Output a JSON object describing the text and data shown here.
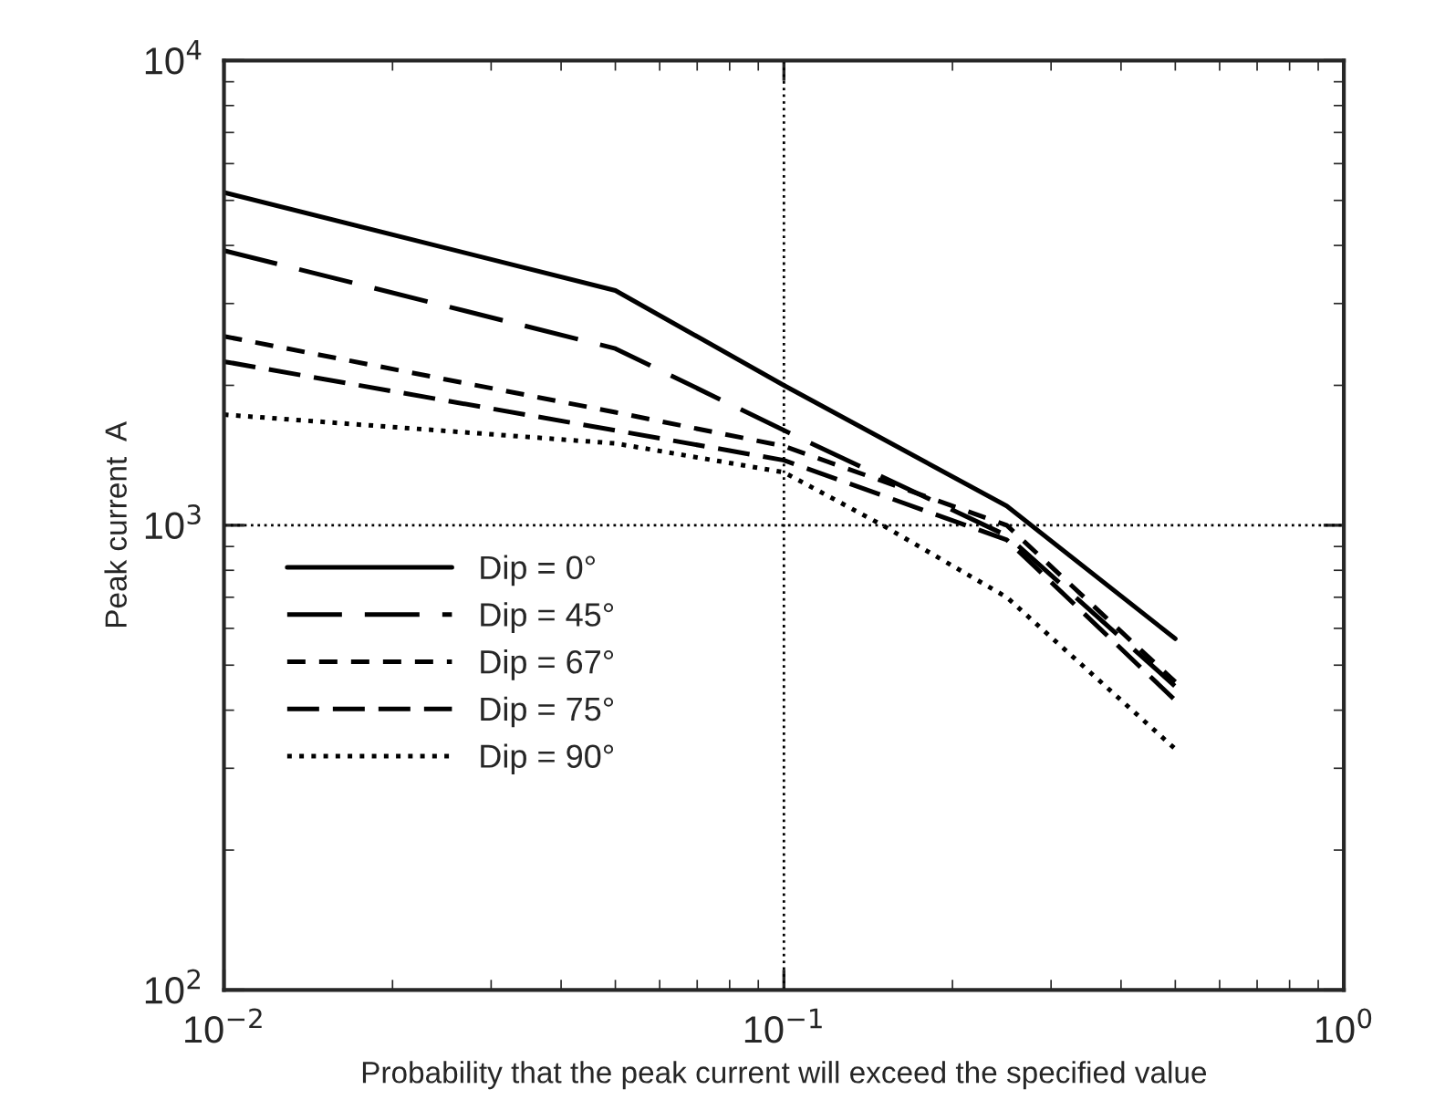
{
  "chart_data": {
    "type": "line",
    "xlabel": "Probability that the peak current will exceed the specified value",
    "ylabel": "Peak current  A",
    "log": "xy",
    "xlim": [
      0.01,
      1
    ],
    "ylim": [
      100,
      10000
    ],
    "xticks": [
      {
        "value": 0.01,
        "label": "10$^{−2}$"
      },
      {
        "value": 0.1,
        "label": "10$^{−1}$"
      },
      {
        "value": 1,
        "label": "10$^{0}$"
      }
    ],
    "yticks": [
      {
        "value": 100,
        "label": "10$^{2}$"
      },
      {
        "value": 1000,
        "label": "10$^{3}$"
      },
      {
        "value": 10000,
        "label": "10$^{4}$"
      }
    ],
    "grid": false,
    "legend": "bottom left",
    "marker": "none",
    "ref_lines": [
      {
        "axis": "x",
        "value": 0.1,
        "line_style": "dotted",
        "color": "#000000"
      },
      {
        "axis": "y",
        "value": 1000,
        "line_style": "dotted",
        "color": "#000000"
      }
    ],
    "series": [
      {
        "name": "Dip = 0°",
        "color": "#000000",
        "line_style": "solid",
        "x": [
          0.01,
          0.05,
          0.1,
          0.25,
          0.5
        ],
        "values": [
          5200,
          3200,
          2000,
          1100,
          570
        ]
      },
      {
        "name": "Dip = 45°",
        "color": "#000000",
        "line_style": "dashed",
        "x": [
          0.01,
          0.05,
          0.1,
          0.25,
          0.5
        ],
        "values": [
          3900,
          2400,
          1600,
          950,
          450
        ]
      },
      {
        "name": "Dip = 67°",
        "color": "#000000",
        "line_style": "dashed",
        "x": [
          0.01,
          0.05,
          0.1,
          0.25,
          0.5
        ],
        "values": [
          2550,
          1750,
          1480,
          1000,
          460
        ]
      },
      {
        "name": "Dip = 75°",
        "color": "#000000",
        "line_style": "dashed",
        "x": [
          0.01,
          0.05,
          0.1,
          0.25,
          0.5
        ],
        "values": [
          2250,
          1600,
          1380,
          930,
          420
        ]
      },
      {
        "name": "Dip = 90°",
        "color": "#000000",
        "line_style": "dotted",
        "x": [
          0.01,
          0.05,
          0.1,
          0.15,
          0.25,
          0.5
        ],
        "values": [
          1730,
          1500,
          1300,
          1000,
          700,
          330
        ]
      }
    ]
  }
}
